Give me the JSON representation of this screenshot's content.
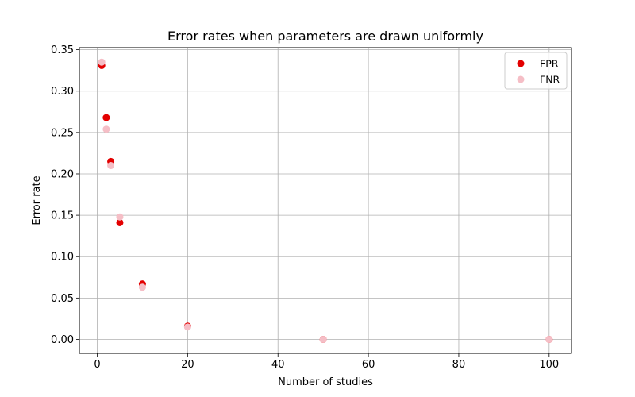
{
  "chart_data": {
    "type": "scatter",
    "title": "Error rates when parameters are drawn uniformly",
    "xlabel": "Number of studies",
    "ylabel": "Error rate",
    "xlim": [
      -3.95,
      104.95
    ],
    "ylim": [
      -0.0168,
      0.3525
    ],
    "x_ticks": [
      0,
      20,
      40,
      60,
      80,
      100
    ],
    "x_tick_labels": [
      "0",
      "20",
      "40",
      "60",
      "80",
      "100"
    ],
    "y_ticks": [
      0.0,
      0.05,
      0.1,
      0.15,
      0.2,
      0.25,
      0.3,
      0.35
    ],
    "y_tick_labels": [
      "0.00",
      "0.05",
      "0.10",
      "0.15",
      "0.20",
      "0.25",
      "0.30",
      "0.35"
    ],
    "grid": true,
    "legend_position": "top-right",
    "series": [
      {
        "name": "FPR",
        "color": "#e30000",
        "x": [
          1,
          2,
          3,
          5,
          10,
          20,
          50,
          100
        ],
        "y": [
          0.331,
          0.268,
          0.215,
          0.141,
          0.067,
          0.016,
          0.0,
          0.0
        ]
      },
      {
        "name": "FNR",
        "color": "#f5bec6",
        "x": [
          1,
          2,
          3,
          5,
          10,
          20,
          50,
          100
        ],
        "y": [
          0.335,
          0.254,
          0.21,
          0.148,
          0.063,
          0.015,
          0.0,
          0.0
        ]
      }
    ]
  }
}
